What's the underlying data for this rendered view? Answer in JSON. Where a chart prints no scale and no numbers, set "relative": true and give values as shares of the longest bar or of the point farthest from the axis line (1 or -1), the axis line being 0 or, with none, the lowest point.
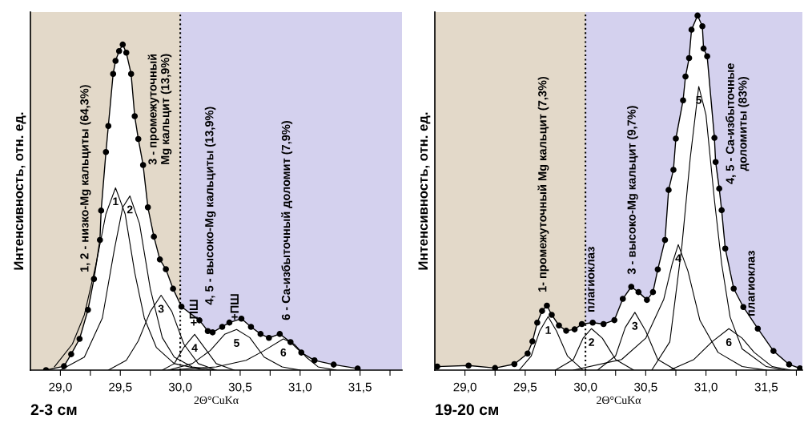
{
  "chart_data": [
    {
      "type": "line",
      "title": "2-3 см",
      "xlabel": "2Θ°CuKα",
      "ylabel": "Интенсивность, отн. ед.",
      "relative": true,
      "xlim": [
        28.75,
        31.85
      ],
      "xticks": [
        {
          "value": 29.0,
          "label": "29,0"
        },
        {
          "value": 29.25,
          "label": null
        },
        {
          "value": 29.5,
          "label": "29,5"
        },
        {
          "value": 29.75,
          "label": null
        },
        {
          "value": 30.0,
          "label": "30,0"
        },
        {
          "value": 30.25,
          "label": null
        },
        {
          "value": 30.5,
          "label": "30,5"
        },
        {
          "value": 30.75,
          "label": null
        },
        {
          "value": 31.0,
          "label": "31,0"
        },
        {
          "value": 31.25,
          "label": null
        },
        {
          "value": 31.5,
          "label": "31,5"
        },
        {
          "value": 31.75,
          "label": null
        }
      ],
      "bands": [
        {
          "axis": "x",
          "from": 28.75,
          "to": 30.0,
          "color": "#e3d9c9"
        },
        {
          "axis": "x",
          "from": 30.0,
          "to": 31.85,
          "color": "#d4d1ee"
        }
      ],
      "ref_lines": [
        {
          "axis": "x",
          "value": 30.0,
          "color": "#000000",
          "line_style": "dotted"
        }
      ],
      "series": [
        {
          "type": "area",
          "color": "#ffffff",
          "marker": "circle",
          "x": [
            28.88,
            29.03,
            29.09,
            29.16,
            29.23,
            29.28,
            29.33,
            29.34,
            29.38,
            29.4,
            29.44,
            29.46,
            29.49,
            29.52,
            29.55,
            29.59,
            29.62,
            29.65,
            29.69,
            29.73,
            29.78,
            29.83,
            29.88,
            29.94,
            30.01,
            30.16,
            30.23,
            30.27,
            30.35,
            30.41,
            30.51,
            30.59,
            30.67,
            30.74,
            30.83,
            30.92,
            31.01,
            31.12,
            31.28,
            31.48
          ],
          "values": [
            0.0,
            0.012,
            0.049,
            0.096,
            0.185,
            0.28,
            0.4,
            0.49,
            0.67,
            0.75,
            0.91,
            0.95,
            0.98,
            1.0,
            0.975,
            0.91,
            0.78,
            0.71,
            0.63,
            0.5,
            0.41,
            0.34,
            0.31,
            0.25,
            0.195,
            0.153,
            0.12,
            0.116,
            0.133,
            0.146,
            0.158,
            0.133,
            0.111,
            0.099,
            0.111,
            0.086,
            0.054,
            0.03,
            0.017,
            0.005
          ]
        },
        {
          "color": "#000000",
          "marker": "none",
          "x": [
            28.95,
            29.1,
            29.2,
            29.3,
            29.38,
            29.46,
            29.54,
            29.62,
            29.7,
            29.8,
            29.95,
            30.2
          ],
          "values": [
            0.01,
            0.08,
            0.17,
            0.33,
            0.48,
            0.56,
            0.48,
            0.3,
            0.16,
            0.07,
            0.02,
            0.0
          ]
        },
        {
          "color": "#000000",
          "marker": "none",
          "x": [
            29.0,
            29.2,
            29.35,
            29.45,
            29.52,
            29.58,
            29.66,
            29.75,
            29.85,
            29.95,
            30.1,
            30.3
          ],
          "values": [
            0.0,
            0.04,
            0.16,
            0.37,
            0.5,
            0.535,
            0.45,
            0.25,
            0.1,
            0.04,
            0.01,
            0.0
          ]
        },
        {
          "color": "#000000",
          "marker": "none",
          "x": [
            29.4,
            29.55,
            29.65,
            29.75,
            29.84,
            29.93,
            30.03,
            30.15,
            30.3
          ],
          "values": [
            0.0,
            0.03,
            0.09,
            0.18,
            0.23,
            0.18,
            0.08,
            0.02,
            0.0
          ]
        },
        {
          "color": "#000000",
          "marker": "none",
          "x": [
            29.85,
            29.95,
            30.03,
            30.12,
            30.2,
            30.3,
            30.45
          ],
          "values": [
            0.0,
            0.02,
            0.07,
            0.11,
            0.07,
            0.02,
            0.0
          ]
        },
        {
          "color": "#000000",
          "marker": "none",
          "x": [
            29.9,
            30.1,
            30.25,
            30.37,
            30.47,
            30.58,
            30.7,
            30.85,
            31.0
          ],
          "values": [
            0.0,
            0.02,
            0.06,
            0.11,
            0.125,
            0.1,
            0.04,
            0.01,
            0.0
          ]
        },
        {
          "color": "#000000",
          "marker": "none",
          "x": [
            29.9,
            30.3,
            30.55,
            30.7,
            30.86,
            30.95,
            31.05,
            31.15,
            31.3
          ],
          "values": [
            0.0,
            0.01,
            0.03,
            0.06,
            0.096,
            0.08,
            0.04,
            0.01,
            0.0
          ]
        }
      ],
      "annotations": [
        {
          "text": "1",
          "x": 29.46,
          "y": 0.56
        },
        {
          "text": "2",
          "x": 29.58,
          "y": 0.535
        },
        {
          "text": "3",
          "x": 29.84,
          "y": 0.23
        },
        {
          "text": "4",
          "x": 30.12,
          "y": 0.11
        },
        {
          "text": "5",
          "x": 30.47,
          "y": 0.125
        },
        {
          "text": "6",
          "x": 30.86,
          "y": 0.096
        },
        "1, 2 - низко-Mg кальциты (64,3%)",
        "3 - промежуточный\nMg кальцит (13,9%)",
        "+ПШ",
        "4, 5 - высоко-Mg кальциты (13,9%)",
        "+ПШ",
        "6 - Ca-избыточный доломит (7,9%)"
      ]
    },
    {
      "type": "line",
      "title": "19-20 см",
      "xlabel": "2Θ°CuKα",
      "ylabel": "Интенсивность, отн. ед.",
      "relative": true,
      "xlim": [
        28.75,
        31.8
      ],
      "xticks": [
        {
          "value": 29.0,
          "label": "29,0"
        },
        {
          "value": 29.25,
          "label": null
        },
        {
          "value": 29.5,
          "label": "29,5"
        },
        {
          "value": 29.75,
          "label": null
        },
        {
          "value": 30.0,
          "label": "30,0"
        },
        {
          "value": 30.25,
          "label": null
        },
        {
          "value": 30.5,
          "label": "30,5"
        },
        {
          "value": 30.75,
          "label": null
        },
        {
          "value": 31.0,
          "label": "31,0"
        },
        {
          "value": 31.25,
          "label": null
        },
        {
          "value": 31.5,
          "label": "31,5"
        },
        {
          "value": 31.75,
          "label": null
        }
      ],
      "bands": [
        {
          "axis": "x",
          "from": 28.75,
          "to": 30.0,
          "color": "#e3d9c9"
        },
        {
          "axis": "x",
          "from": 30.0,
          "to": 31.8,
          "color": "#d4d1ee"
        }
      ],
      "ref_lines": [
        {
          "axis": "x",
          "value": 30.0,
          "color": "#000000",
          "line_style": "dotted"
        }
      ],
      "series": [
        {
          "type": "area",
          "color": "#ffffff",
          "marker": "circle",
          "x": [
            28.77,
            29.03,
            29.25,
            29.41,
            29.52,
            29.56,
            29.6,
            29.64,
            29.68,
            29.72,
            29.78,
            29.84,
            29.91,
            29.97,
            30.06,
            30.15,
            30.24,
            30.31,
            30.38,
            30.44,
            30.51,
            30.56,
            30.6,
            30.66,
            30.69,
            30.73,
            30.75,
            30.81,
            30.83,
            30.86,
            30.88,
            30.93,
            30.97,
            30.98,
            31.01,
            31.07,
            31.08,
            31.11,
            31.13,
            31.16,
            31.23,
            31.31,
            31.43,
            31.56,
            31.69,
            31.78
          ],
          "values": [
            0.01,
            0.013,
            0.006,
            0.017,
            0.047,
            0.081,
            0.134,
            0.167,
            0.182,
            0.156,
            0.126,
            0.111,
            0.115,
            0.13,
            0.134,
            0.13,
            0.141,
            0.201,
            0.235,
            0.22,
            0.198,
            0.22,
            0.284,
            0.367,
            0.508,
            0.565,
            0.653,
            0.761,
            0.828,
            0.88,
            0.96,
            1.0,
            0.97,
            0.907,
            0.885,
            0.655,
            0.587,
            0.512,
            0.451,
            0.343,
            0.23,
            0.178,
            0.117,
            0.054,
            0.016,
            0.005
          ]
        },
        {
          "color": "#000000",
          "marker": "none",
          "x": [
            29.45,
            29.55,
            29.62,
            29.69,
            29.76,
            29.85,
            29.98
          ],
          "values": [
            0.0,
            0.04,
            0.11,
            0.151,
            0.11,
            0.04,
            0.0
          ]
        },
        {
          "color": "#000000",
          "marker": "none",
          "x": [
            29.75,
            29.9,
            29.98,
            30.05,
            30.14,
            30.25,
            30.4
          ],
          "values": [
            0.0,
            0.03,
            0.09,
            0.117,
            0.09,
            0.03,
            0.0
          ]
        },
        {
          "color": "#000000",
          "marker": "none",
          "x": [
            30.1,
            30.25,
            30.33,
            30.41,
            30.5,
            30.6,
            30.75
          ],
          "values": [
            0.0,
            0.04,
            0.12,
            0.163,
            0.11,
            0.03,
            0.0
          ]
        },
        {
          "color": "#000000",
          "marker": "none",
          "x": [
            29.9,
            30.3,
            30.5,
            30.65,
            30.72,
            30.77,
            30.85,
            30.95,
            31.1,
            31.3,
            31.5
          ],
          "values": [
            0.0,
            0.03,
            0.09,
            0.2,
            0.3,
            0.354,
            0.28,
            0.14,
            0.05,
            0.01,
            0.0
          ]
        },
        {
          "color": "#000000",
          "marker": "none",
          "x": [
            30.55,
            30.7,
            30.8,
            30.87,
            30.94,
            31.0,
            31.07,
            31.13,
            31.2,
            31.3,
            31.5,
            31.65
          ],
          "values": [
            0.0,
            0.08,
            0.35,
            0.6,
            0.8,
            0.72,
            0.48,
            0.3,
            0.15,
            0.06,
            0.01,
            0.0
          ]
        },
        {
          "color": "#000000",
          "marker": "none",
          "x": [
            30.7,
            30.9,
            31.05,
            31.19,
            31.3,
            31.4,
            31.55,
            31.7
          ],
          "values": [
            0.0,
            0.03,
            0.08,
            0.117,
            0.09,
            0.05,
            0.01,
            0.0
          ]
        }
      ],
      "annotations": [
        {
          "text": "1",
          "x": 29.69,
          "y": 0.151
        },
        {
          "text": "2",
          "x": 30.05,
          "y": 0.117
        },
        {
          "text": "3",
          "x": 30.41,
          "y": 0.163
        },
        {
          "text": "4",
          "x": 30.77,
          "y": 0.354
        },
        {
          "text": "5",
          "x": 30.94,
          "y": 0.8
        },
        {
          "text": "6",
          "x": 31.19,
          "y": 0.117
        },
        "1- промежуточный Mg кальцит (7,3%)",
        "плагиоклаз",
        "3 - высоко-Mg кальцит (9,7%)",
        "4, 5 - Ca-избыточные\nдоломиты (83%)",
        "плагиоклаз"
      ]
    }
  ]
}
